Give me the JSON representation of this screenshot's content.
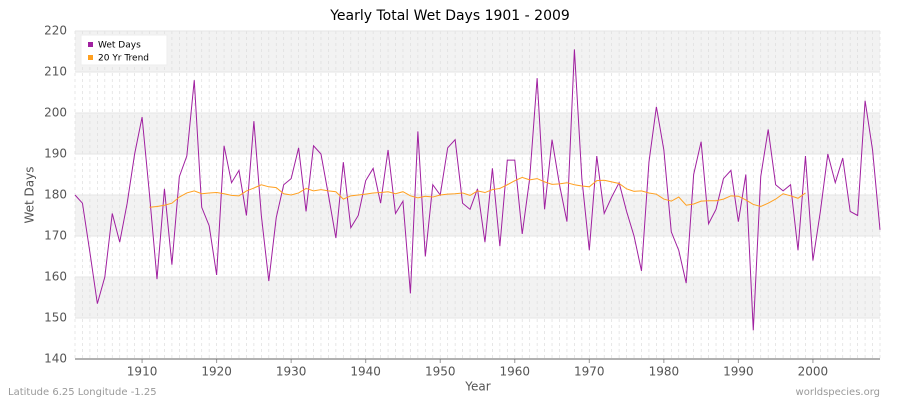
{
  "chart_data": {
    "type": "line",
    "title": "Yearly Total Wet Days 1901 - 2009",
    "xlabel": "Year",
    "ylabel": "Wet Days",
    "footer_left": "Latitude 6.25 Longitude -1.25",
    "footer_right": "worldspecies.org",
    "x": [
      1901,
      1902,
      1903,
      1904,
      1905,
      1906,
      1907,
      1908,
      1909,
      1910,
      1911,
      1912,
      1913,
      1914,
      1915,
      1916,
      1917,
      1918,
      1919,
      1920,
      1921,
      1922,
      1923,
      1924,
      1925,
      1926,
      1927,
      1928,
      1929,
      1930,
      1931,
      1932,
      1933,
      1934,
      1935,
      1936,
      1937,
      1938,
      1939,
      1940,
      1941,
      1942,
      1943,
      1944,
      1945,
      1946,
      1947,
      1948,
      1949,
      1950,
      1951,
      1952,
      1953,
      1954,
      1955,
      1956,
      1957,
      1958,
      1959,
      1960,
      1961,
      1962,
      1963,
      1964,
      1965,
      1966,
      1967,
      1968,
      1969,
      1970,
      1971,
      1972,
      1973,
      1974,
      1975,
      1976,
      1977,
      1978,
      1979,
      1980,
      1981,
      1982,
      1983,
      1984,
      1985,
      1986,
      1987,
      1988,
      1989,
      1990,
      1991,
      1992,
      1993,
      1994,
      1995,
      1996,
      1997,
      1998,
      1999,
      2000,
      2001,
      2002,
      2003,
      2004,
      2005,
      2006,
      2007,
      2008,
      2009
    ],
    "series": [
      {
        "name": "Wet Days",
        "color": "#a020a0",
        "values": [
          180,
          178,
          166,
          153.5,
          160,
          175.5,
          168.5,
          178,
          190,
          199,
          180,
          159.5,
          181.5,
          163,
          184.5,
          189.5,
          208,
          177,
          172.5,
          160.5,
          192,
          183,
          186,
          175,
          198,
          175,
          159,
          174.5,
          182.5,
          184,
          191.5,
          176,
          192,
          190,
          180,
          169.5,
          188,
          172,
          175,
          183.5,
          186.5,
          178,
          191,
          175.5,
          178.5,
          156,
          195.5,
          165,
          182.5,
          180,
          191.5,
          193.5,
          178,
          176.5,
          181.5,
          168.5,
          186.5,
          167.5,
          188.5,
          188.5,
          170.5,
          184,
          208.5,
          176.5,
          193.5,
          182.5,
          173.5,
          215.5,
          184,
          166.5,
          189.5,
          175.5,
          179.5,
          183,
          176,
          170,
          161.5,
          188,
          201.5,
          191,
          171,
          166.5,
          158.5,
          185,
          193,
          173,
          176.5,
          184,
          186,
          173.5,
          185,
          147,
          184.5,
          196,
          182.5,
          181,
          182.5,
          166.5,
          189.5,
          164,
          176,
          190,
          183,
          189,
          176,
          175,
          203,
          191,
          171.5
        ]
      },
      {
        "name": "20 Yr Trend",
        "color": "#ffa020",
        "values": [
          null,
          null,
          null,
          null,
          null,
          null,
          null,
          null,
          null,
          null,
          177,
          177.2,
          177.5,
          178,
          179.5,
          180.5,
          181,
          180.3,
          180.5,
          180.6,
          180.3,
          179.9,
          179.8,
          181,
          181.7,
          182.5,
          182,
          181.8,
          180.3,
          180,
          180.5,
          181.6,
          181,
          181.3,
          181,
          180.8,
          179,
          179.8,
          180,
          180.2,
          180.5,
          180.6,
          180.8,
          180.3,
          180.8,
          179.8,
          179.3,
          179.7,
          179.5,
          180,
          180.2,
          180.3,
          180.5,
          179.9,
          181,
          180.6,
          181.3,
          181.6,
          182.5,
          183.5,
          184.3,
          183.7,
          184,
          183.2,
          182.6,
          182.7,
          183,
          182.5,
          182.2,
          182,
          183.5,
          183.6,
          183.2,
          182.8,
          181.5,
          180.9,
          181,
          180.5,
          180.2,
          179,
          178.5,
          179.5,
          177.5,
          177.8,
          178.5,
          178.6,
          178.6,
          179,
          179.8,
          179.7,
          178.8,
          177.7,
          177.2,
          178,
          179,
          180.3,
          179.8,
          179.2,
          180.5,
          null,
          null,
          null,
          null,
          null,
          null,
          null,
          null,
          null,
          null
        ]
      }
    ],
    "xlim": [
      1901,
      2009
    ],
    "xticks": [
      1910,
      1920,
      1930,
      1940,
      1950,
      1960,
      1970,
      1980,
      1990,
      2000
    ],
    "ylim": [
      140,
      220
    ],
    "yticks": [
      140,
      150,
      160,
      170,
      180,
      190,
      200,
      210,
      220
    ],
    "grid": true,
    "legend": "top-left"
  }
}
